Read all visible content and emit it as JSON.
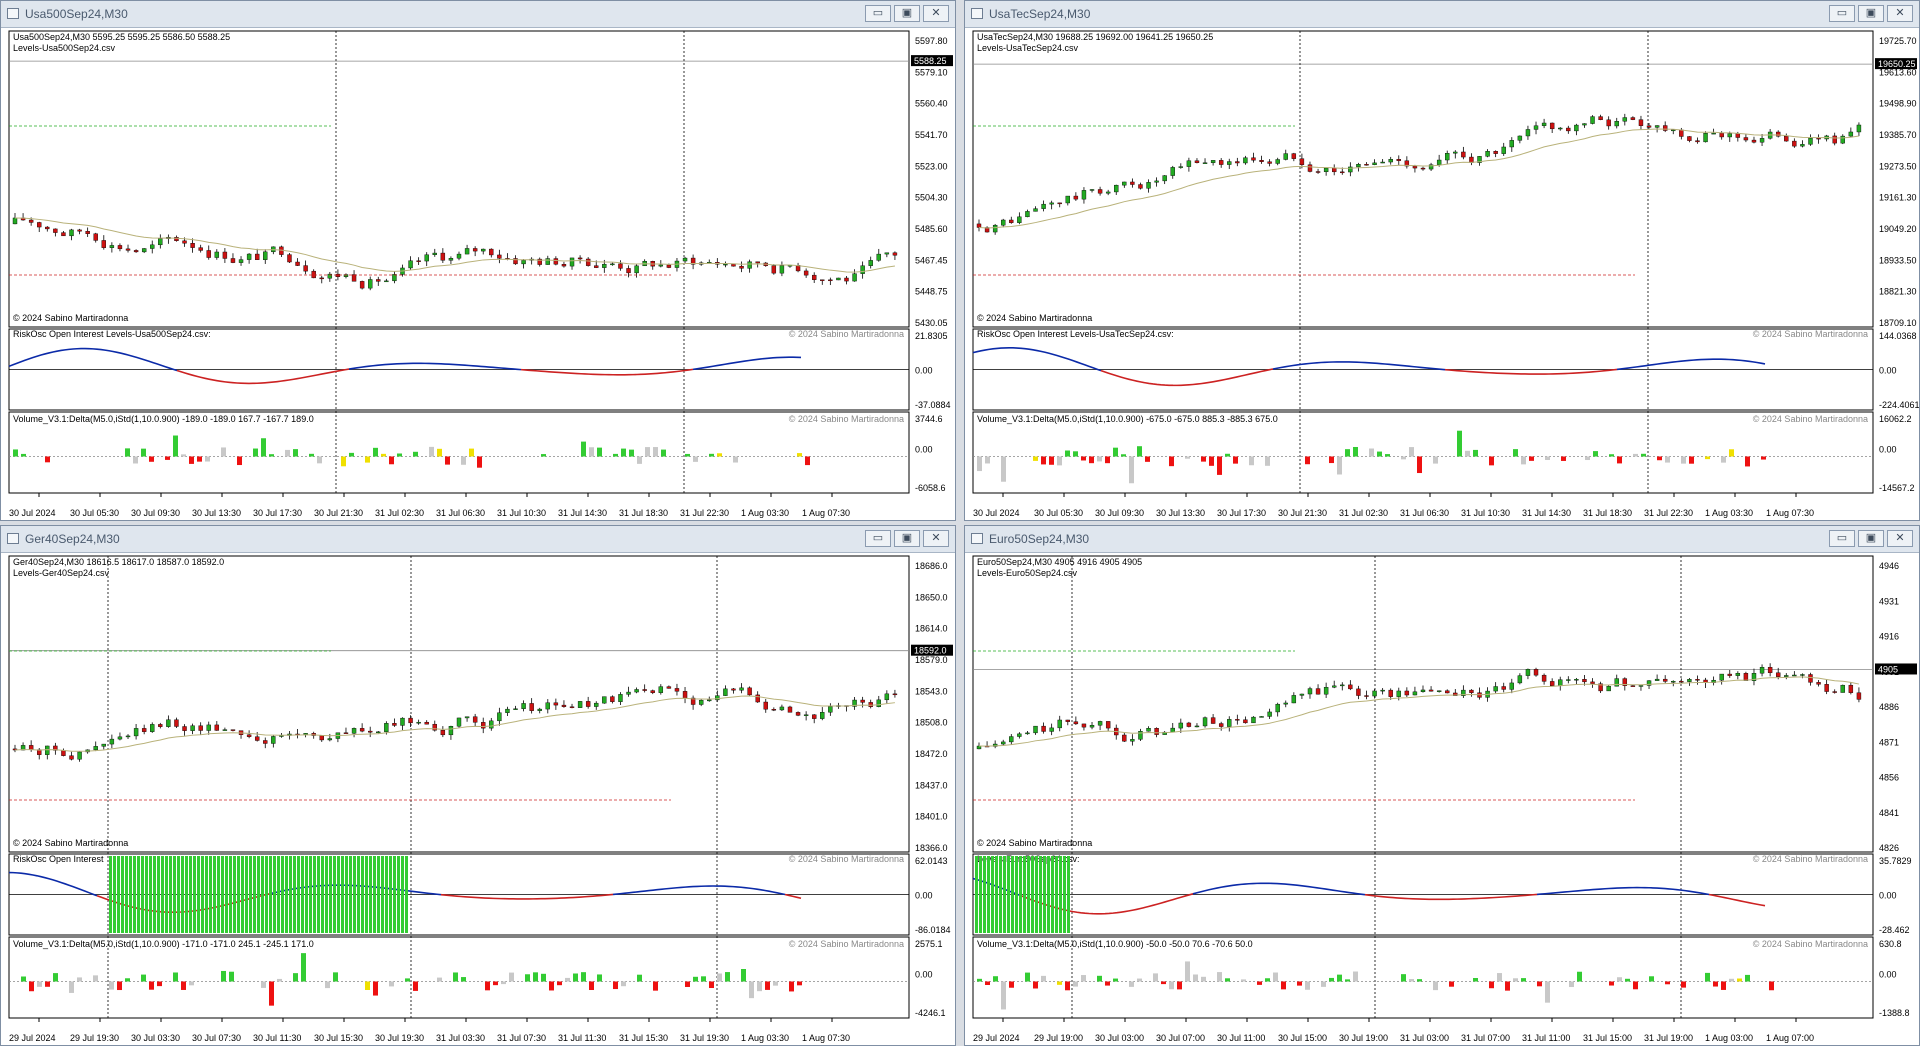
{
  "windows": [
    {
      "title": "Usa500Sep24,M30",
      "info": "Usa500Sep24,M30  5595.25 5595.25 5586.50 5588.25",
      "levels_label": "Levels-Usa500Sep24.csv",
      "copyright_main": "© 2024 Sabino Martiradonna",
      "price_axis": [
        "5597.80",
        "5579.10",
        "5560.40",
        "5541.70",
        "5523.00",
        "5504.30",
        "5485.60",
        "5467.45",
        "5448.75",
        "5430.05"
      ],
      "price_range": [
        5430.05,
        5600.5
      ],
      "current_price": "5588.25",
      "osc_label": "RiskOsc  Open Interest Levels-Usa500Sep24.csv:",
      "osc_copyright": "© 2024 Sabino Martiradonna",
      "osc_axis": [
        "21.8305",
        "0.00",
        "-37.0884"
      ],
      "vol_label": "Volume_V3.1:Delta(M5.0,iStd(1,10.0.900) -189.0 -189.0 167.7 -167.7 189.0",
      "vol_copyright": "© 2024 Sabino Martiradonna",
      "vol_axis": [
        "3744.6",
        "0.00",
        "-6058.6"
      ],
      "time_axis": [
        "30 Jul 2024",
        "30 Jul 05:30",
        "30 Jul 09:30",
        "30 Jul 13:30",
        "30 Jul 17:30",
        "30 Jul 21:30",
        "31 Jul 02:30",
        "31 Jul 06:30",
        "31 Jul 10:30",
        "31 Jul 14:30",
        "31 Jul 18:30",
        "31 Jul 22:30",
        "1 Aug 03:30",
        "1 Aug 07:30"
      ]
    },
    {
      "title": "UsaTecSep24,M30",
      "info": "UsaTecSep24,M30  19688.25 19692.00 19641.25 19650.25",
      "levels_label": "Levels-UsaTecSep24.csv",
      "copyright_main": "© 2024 Sabino Martiradonna",
      "price_axis": [
        "19725.70",
        "19613.60",
        "19498.90",
        "19385.70",
        "19273.50",
        "19161.30",
        "19049.20",
        "18933.50",
        "18821.30",
        "18709.10"
      ],
      "price_range": [
        18709.1,
        19735
      ],
      "current_price": "19650.25",
      "osc_label": "RiskOsc  Open Interest Levels-UsaTecSep24.csv:",
      "osc_copyright": "© 2024 Sabino Martiradonna",
      "osc_axis": [
        "144.0368",
        "0.00",
        "-224.4061"
      ],
      "vol_label": "Volume_V3.1:Delta(M5.0,iStd(1,10.0.900) -675.0 -675.0 885.3 -885.3 675.0",
      "vol_copyright": "© 2024 Sabino Martiradonna",
      "vol_axis": [
        "16062.2",
        "0.00",
        "-14567.2"
      ],
      "time_axis": [
        "30 Jul 2024",
        "30 Jul 05:30",
        "30 Jul 09:30",
        "30 Jul 13:30",
        "30 Jul 17:30",
        "30 Jul 21:30",
        "31 Jul 02:30",
        "31 Jul 06:30",
        "31 Jul 10:30",
        "31 Jul 14:30",
        "31 Jul 18:30",
        "31 Jul 22:30",
        "1 Aug 03:30",
        "1 Aug 07:30"
      ]
    },
    {
      "title": "Ger40Sep24,M30",
      "info": "Ger40Sep24,M30  18616.5 18617.0 18587.0 18592.0",
      "levels_label": "Levels-Ger40Sep24.csv",
      "copyright_main": "© 2024 Sabino Martiradonna",
      "price_axis": [
        "18686.0",
        "18650.0",
        "18614.0",
        "18579.0",
        "18543.0",
        "18508.0",
        "18472.0",
        "18437.0",
        "18401.0",
        "18366.0"
      ],
      "price_range": [
        18366,
        18690
      ],
      "current_price": "18592.0",
      "osc_label": "RiskOsc  Open Interest",
      "osc_copyright": "© 2024 Sabino Martiradonna",
      "osc_axis": [
        "62.0143",
        "0.00",
        "-86.0184"
      ],
      "vol_label": "Volume_V3.1:Delta(M5.0,iStd(1,10.0.900) -171.0 -171.0 245.1 -245.1 171.0",
      "vol_copyright": "© 2024 Sabino Martiradonna",
      "vol_axis": [
        "2575.1",
        "0.00",
        "-4246.1"
      ],
      "time_axis": [
        "29 Jul 2024",
        "29 Jul 19:30",
        "30 Jul 03:30",
        "30 Jul 07:30",
        "30 Jul 11:30",
        "30 Jul 15:30",
        "30 Jul 19:30",
        "31 Jul 03:30",
        "31 Jul 07:30",
        "31 Jul 11:30",
        "31 Jul 15:30",
        "31 Jul 19:30",
        "1 Aug 03:30",
        "1 Aug 07:30"
      ]
    },
    {
      "title": "Euro50Sep24,M30",
      "info": "Euro50Sep24,M30  4905 4916 4905 4905",
      "levels_label": "Levels-Euro50Sep24.csv",
      "copyright_main": "© 2024 Sabino Martiradonna",
      "price_axis": [
        "4946",
        "4931",
        "4916",
        "4901",
        "4886",
        "4871",
        "4856",
        "4841",
        "4826"
      ],
      "price_range": [
        4818,
        4956
      ],
      "current_price": "4905",
      "osc_label": "Levels-Euro50Sep24.csv:",
      "osc_copyright": "© 2024 Sabino Martiradonna",
      "osc_axis": [
        "35.7829",
        "0.00",
        "-28.462"
      ],
      "vol_label": "Volume_V3.1:Delta(M5.0,iStd(1,10.0.900) -50.0 -50.0 70.6 -70.6 50.0",
      "vol_copyright": "© 2024 Sabino Martiradonna",
      "vol_axis": [
        "630.8",
        "0.00",
        "-1388.8"
      ],
      "time_axis": [
        "29 Jul 2024",
        "29 Jul 19:00",
        "30 Jul 03:00",
        "30 Jul 07:00",
        "30 Jul 11:00",
        "30 Jul 15:00",
        "30 Jul 19:00",
        "31 Jul 03:00",
        "31 Jul 07:00",
        "31 Jul 11:00",
        "31 Jul 15:00",
        "31 Jul 19:00",
        "1 Aug 03:00",
        "1 Aug 07:00"
      ]
    }
  ],
  "window_buttons": {
    "minimize": "▭",
    "maximize": "▣",
    "close": "✕"
  },
  "colors": {
    "bull": "#22aa22",
    "bear": "#cc1111",
    "osc_pos": "#0b2aa8",
    "osc_neg": "#cc2222",
    "ma": "#b9b27a",
    "vol_green": "#33cc33",
    "vol_red": "#ee1111",
    "vol_gray": "#c8c8c8",
    "vol_yellow": "#f0e000"
  }
}
